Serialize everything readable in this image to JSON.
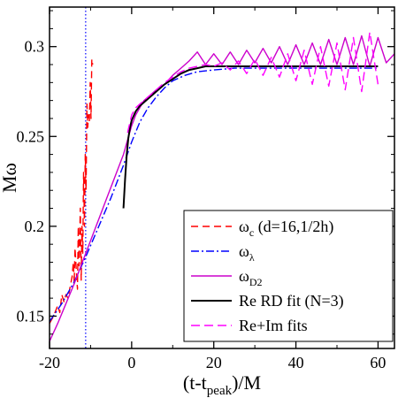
{
  "chart_data": {
    "type": "line",
    "title": "",
    "xlabel": {
      "main": "(t-t",
      "sub": "peak",
      "tail": ")/M"
    },
    "ylabel": "Mω",
    "xlim": [
      -20,
      64
    ],
    "ylim": [
      0.132,
      0.322
    ],
    "x_ticks": [
      -20,
      0,
      20,
      40,
      60
    ],
    "x_tick_labels": [
      "-20",
      "0",
      "20",
      "40",
      "60"
    ],
    "y_ticks": [
      0.15,
      0.2,
      0.25,
      0.3
    ],
    "y_tick_labels": [
      "0.15",
      "0.2",
      "0.25",
      "0.3"
    ],
    "grid": false,
    "legend_position": "bottom-right",
    "vline": {
      "x": -11.2,
      "color": "#0000ff"
    },
    "series": [
      {
        "name": "ωc (d=16,1/2h)",
        "legend_main": "ω",
        "legend_sub": "c",
        "legend_tail": " (d=16,1/2h)",
        "color": "#ff0000",
        "dash": "8,5",
        "x": [
          -20,
          -19,
          -18,
          -17.5,
          -17,
          -16.5,
          -16,
          -15.5,
          -15,
          -14.5,
          -14.2,
          -14,
          -13.8,
          -13.5,
          -13.2,
          -13,
          -12.8,
          -12.5,
          -12.3,
          -12.1,
          -11.9,
          -11.7,
          -11.5,
          -11.3,
          -11.1,
          -10.9,
          -10.7,
          -10.5,
          -10.3,
          -10.1,
          -9.9,
          -9.7,
          -9.5
        ],
        "y": [
          0.146,
          0.15,
          0.156,
          0.152,
          0.162,
          0.158,
          0.162,
          0.16,
          0.166,
          0.172,
          0.18,
          0.168,
          0.188,
          0.176,
          0.165,
          0.2,
          0.178,
          0.21,
          0.17,
          0.2,
          0.185,
          0.23,
          0.2,
          0.24,
          0.22,
          0.268,
          0.255,
          0.262,
          0.258,
          0.28,
          0.26,
          0.293,
          0.29
        ]
      },
      {
        "name": "ωλ",
        "legend_main": "ω",
        "legend_sub": "λ",
        "legend_tail": "",
        "color": "#0000ff",
        "dash": "9,3,2,3",
        "x": [
          -20,
          -17,
          -14,
          -11,
          -8,
          -5,
          -2,
          0,
          2,
          4,
          6,
          8,
          10,
          13,
          16,
          20,
          25,
          30,
          35,
          40,
          45,
          50,
          55,
          60
        ],
        "y": [
          0.147,
          0.157,
          0.169,
          0.184,
          0.2,
          0.216,
          0.234,
          0.247,
          0.258,
          0.266,
          0.272,
          0.277,
          0.281,
          0.284,
          0.286,
          0.287,
          0.288,
          0.288,
          0.288,
          0.288,
          0.288,
          0.288,
          0.288,
          0.288
        ]
      },
      {
        "name": "ωD2",
        "legend_main": "ω",
        "legend_sub": "D2",
        "legend_tail": "",
        "color": "#cc00cc",
        "dash": "",
        "x": [
          -20,
          -18,
          -16,
          -14,
          -12,
          -10,
          -8,
          -6,
          -4,
          -2,
          -1,
          0,
          1,
          2,
          3,
          4,
          6,
          8,
          10,
          12,
          14,
          16,
          18,
          20,
          22,
          24,
          26,
          28,
          30,
          32,
          34,
          36,
          38,
          40,
          42,
          44,
          46,
          48,
          50,
          52,
          54,
          56,
          58,
          60,
          62,
          64
        ],
        "y": [
          0.136,
          0.146,
          0.157,
          0.168,
          0.18,
          0.192,
          0.204,
          0.216,
          0.228,
          0.24,
          0.248,
          0.256,
          0.262,
          0.266,
          0.27,
          0.272,
          0.276,
          0.279,
          0.284,
          0.288,
          0.292,
          0.297,
          0.29,
          0.296,
          0.29,
          0.297,
          0.29,
          0.298,
          0.291,
          0.299,
          0.291,
          0.3,
          0.29,
          0.301,
          0.29,
          0.302,
          0.29,
          0.304,
          0.29,
          0.305,
          0.29,
          0.306,
          0.289,
          0.305,
          0.291,
          0.296
        ]
      },
      {
        "name": "Re RD fit (N=3)",
        "legend_main": "Re RD fit (N=3)",
        "legend_sub": "",
        "legend_tail": "",
        "color": "#000000",
        "dash": "",
        "x": [
          -2,
          -1.6,
          -1.2,
          -0.8,
          -0.4,
          0,
          1,
          2,
          4,
          6,
          8,
          10,
          12,
          14,
          16,
          18,
          20,
          25,
          30,
          35,
          40,
          45,
          50,
          55,
          60
        ],
        "y": [
          0.21,
          0.226,
          0.24,
          0.249,
          0.255,
          0.259,
          0.264,
          0.267,
          0.271,
          0.275,
          0.279,
          0.282,
          0.285,
          0.287,
          0.288,
          0.289,
          0.289,
          0.289,
          0.289,
          0.289,
          0.289,
          0.289,
          0.289,
          0.289,
          0.289
        ]
      },
      {
        "name": "Re+Im fits",
        "legend_main": "Re+Im fits",
        "legend_sub": "",
        "legend_tail": "",
        "color": "#ff00ff",
        "dash": "10,5",
        "x": [
          -1,
          0,
          1,
          2,
          4,
          6,
          8,
          10,
          12,
          14,
          16,
          18,
          20,
          22,
          24,
          26,
          28,
          30,
          32,
          34,
          36,
          38,
          40,
          42,
          44,
          46,
          48,
          50,
          52,
          54,
          56,
          58,
          60
        ],
        "y": [
          0.252,
          0.262,
          0.266,
          0.268,
          0.272,
          0.276,
          0.28,
          0.283,
          0.286,
          0.288,
          0.289,
          0.29,
          0.289,
          0.291,
          0.287,
          0.292,
          0.285,
          0.293,
          0.284,
          0.294,
          0.283,
          0.296,
          0.281,
          0.298,
          0.279,
          0.3,
          0.278,
          0.302,
          0.276,
          0.305,
          0.275,
          0.308,
          0.279
        ]
      }
    ]
  },
  "colors": {
    "axis": "#000000",
    "background": "#ffffff"
  }
}
